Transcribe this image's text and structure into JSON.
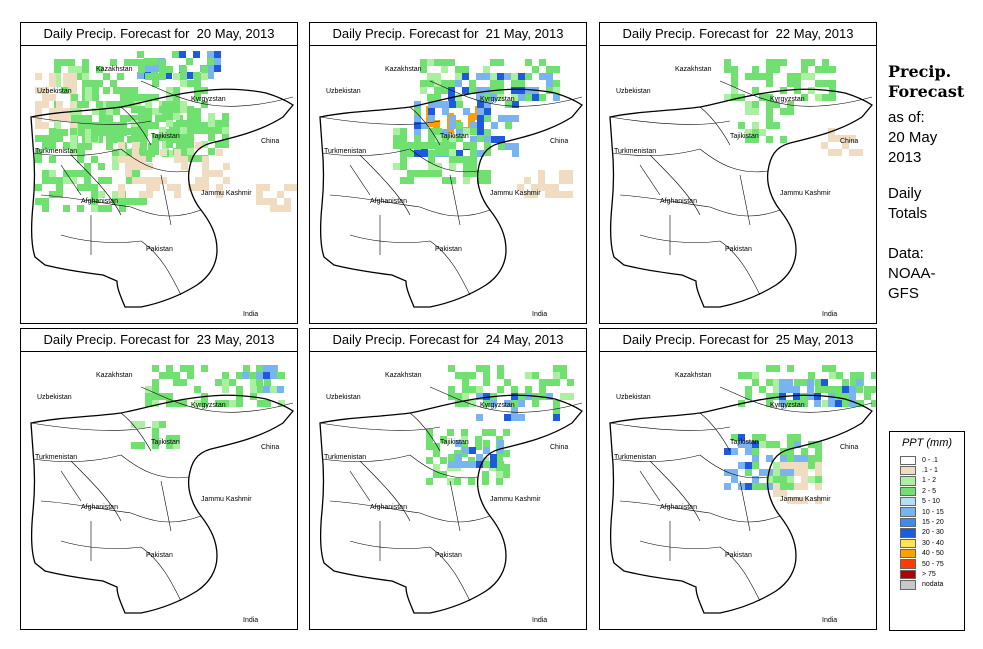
{
  "title_prefix": "Daily Precip. Forecast for",
  "panels": [
    {
      "date": "20 May, 2013",
      "rain": [
        {
          "r": 0.02,
          "c": 0.42,
          "n": 0.1,
          "m": 0.3,
          "cl": "b"
        },
        {
          "r": 0.05,
          "c": 0.12,
          "n": 0.3,
          "m": 0.55,
          "cl": "g"
        },
        {
          "r": 0.1,
          "c": 0.05,
          "n": 0.2,
          "m": 0.15,
          "cl": "t"
        },
        {
          "r": 0.15,
          "c": 0.18,
          "n": 0.25,
          "m": 0.4,
          "cl": "g"
        },
        {
          "r": 0.22,
          "c": 0.4,
          "n": 0.2,
          "m": 0.35,
          "cl": "g"
        },
        {
          "r": 0.3,
          "c": 0.05,
          "n": 0.3,
          "m": 0.4,
          "cl": "g"
        },
        {
          "r": 0.35,
          "c": 0.35,
          "n": 0.2,
          "m": 0.4,
          "cl": "t"
        },
        {
          "r": 0.5,
          "c": 0.85,
          "n": 0.1,
          "m": 0.25,
          "cl": "t"
        }
      ]
    },
    {
      "date": "21 May, 2013",
      "rain": [
        {
          "r": 0.05,
          "c": 0.4,
          "n": 0.15,
          "m": 0.5,
          "cl": "g"
        },
        {
          "r": 0.1,
          "c": 0.5,
          "n": 0.1,
          "m": 0.4,
          "cl": "b"
        },
        {
          "r": 0.22,
          "c": 0.42,
          "n": 0.1,
          "m": 0.18,
          "cl": "o"
        },
        {
          "r": 0.2,
          "c": 0.35,
          "n": 0.2,
          "m": 0.4,
          "cl": "b"
        },
        {
          "r": 0.3,
          "c": 0.3,
          "n": 0.2,
          "m": 0.35,
          "cl": "g"
        },
        {
          "r": 0.45,
          "c": 0.75,
          "n": 0.1,
          "m": 0.2,
          "cl": "t"
        }
      ]
    },
    {
      "date": "22 May, 2013",
      "rain": [
        {
          "r": 0.05,
          "c": 0.45,
          "n": 0.15,
          "m": 0.4,
          "cl": "g"
        },
        {
          "r": 0.2,
          "c": 0.5,
          "n": 0.15,
          "m": 0.2,
          "cl": "g"
        },
        {
          "r": 0.3,
          "c": 0.8,
          "n": 0.1,
          "m": 0.15,
          "cl": "t"
        }
      ]
    },
    {
      "date": "23 May, 2013",
      "rain": [
        {
          "r": 0.05,
          "c": 0.45,
          "n": 0.15,
          "m": 0.5,
          "cl": "g"
        },
        {
          "r": 0.05,
          "c": 0.8,
          "n": 0.1,
          "m": 0.15,
          "cl": "b"
        },
        {
          "r": 0.25,
          "c": 0.4,
          "n": 0.1,
          "m": 0.2,
          "cl": "g"
        }
      ]
    },
    {
      "date": "24 May, 2013",
      "rain": [
        {
          "r": 0.05,
          "c": 0.5,
          "n": 0.15,
          "m": 0.45,
          "cl": "g"
        },
        {
          "r": 0.15,
          "c": 0.6,
          "n": 0.1,
          "m": 0.3,
          "cl": "b"
        },
        {
          "r": 0.28,
          "c": 0.42,
          "n": 0.2,
          "m": 0.3,
          "cl": "g"
        },
        {
          "r": 0.32,
          "c": 0.5,
          "n": 0.1,
          "m": 0.2,
          "cl": "b"
        }
      ]
    },
    {
      "date": "25 May, 2013",
      "rain": [
        {
          "r": 0.05,
          "c": 0.5,
          "n": 0.15,
          "m": 0.5,
          "cl": "g"
        },
        {
          "r": 0.1,
          "c": 0.65,
          "n": 0.1,
          "m": 0.3,
          "cl": "b"
        },
        {
          "r": 0.3,
          "c": 0.45,
          "n": 0.2,
          "m": 0.3,
          "cl": "b"
        },
        {
          "r": 0.3,
          "c": 0.55,
          "n": 0.2,
          "m": 0.25,
          "cl": "g"
        },
        {
          "r": 0.4,
          "c": 0.6,
          "n": 0.15,
          "m": 0.2,
          "cl": "t"
        }
      ]
    }
  ],
  "map_labels": {
    "kazakhstan": "Kazakhstan",
    "uzbekistan": "Uzbekistan",
    "kyrgyzstan": "Kyrgyzstan",
    "tajikistan": "Tajikistan",
    "turkmenistan": "Turkmenistan",
    "china": "China",
    "afghanistan": "Afghanistan",
    "jammu_kashmir": "Jammu Kashmir",
    "pakistan": "Pakistan",
    "india": "India"
  },
  "sidebar": {
    "title_line1": "Precip.",
    "title_line2": "Forecast",
    "asof_line1": "as of:",
    "asof_line2": "20 May",
    "asof_line3": "2013",
    "daily_line1": "Daily",
    "daily_line2": "Totals",
    "source_line1": "Data:",
    "source_line2": "NOAA-",
    "source_line3": "GFS"
  },
  "legend": {
    "title": "PPT (mm)",
    "items": [
      {
        "label": "0 - .1",
        "color": "#ffffff"
      },
      {
        "label": ".1 - 1",
        "color": "#f0dcc0"
      },
      {
        "label": "1 - 2",
        "color": "#aaf0a0"
      },
      {
        "label": "2 - 5",
        "color": "#70e070"
      },
      {
        "label": "5 - 10",
        "color": "#b4def5"
      },
      {
        "label": "10 - 15",
        "color": "#7ab4f0"
      },
      {
        "label": "15 - 20",
        "color": "#3c8cf0"
      },
      {
        "label": "20 - 30",
        "color": "#1e5adc"
      },
      {
        "label": "30 - 40",
        "color": "#ffe650"
      },
      {
        "label": "40 - 50",
        "color": "#ffa000"
      },
      {
        "label": "50 - 75",
        "color": "#ff3c00"
      },
      {
        "label": "> 75",
        "color": "#b40000"
      },
      {
        "label": "nodata",
        "color": "#c8c8c8"
      }
    ]
  }
}
